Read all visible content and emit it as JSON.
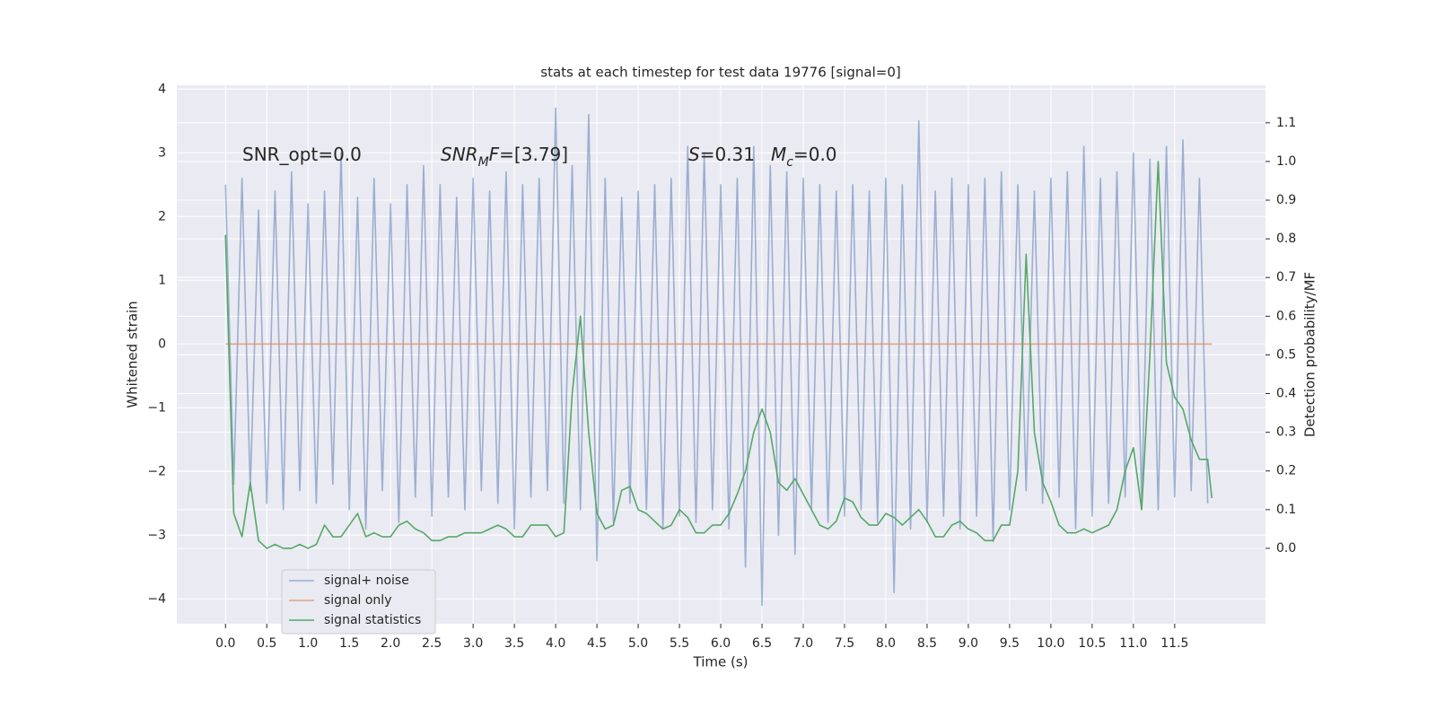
{
  "chart_data": {
    "type": "line",
    "title": "stats at each timestep for test data 19776 [signal=0]",
    "xlabel": "Time (s)",
    "ylabel": "Whitened strain",
    "y2label": "Detection probability/MF",
    "annotations": [
      [
        "SNR_opt=0.0"
      ],
      [
        "SNR",
        "M",
        "F",
        "=[3.79]"
      ],
      [
        "S",
        "=0.31"
      ],
      [
        "M",
        "c",
        "=0.0"
      ]
    ],
    "xlim": [
      -0.59,
      12.6
    ],
    "ylim": [
      -4.39,
      4.06
    ],
    "y2lim": [
      -0.195,
      1.197
    ],
    "xticks": [
      {
        "value": 0,
        "label": "0.0"
      },
      0.5,
      {
        "value": 1,
        "label": "1.0"
      },
      1.5,
      {
        "value": 2,
        "label": "2.0"
      },
      2.5,
      {
        "value": 3,
        "label": "3.0"
      },
      3.5,
      {
        "value": 4,
        "label": "4.0"
      },
      4.5,
      {
        "value": 5,
        "label": "5.0"
      },
      5.5,
      {
        "value": 6,
        "label": "6.0"
      },
      6.5,
      {
        "value": 7,
        "label": "7.0"
      },
      7.5,
      {
        "value": 8,
        "label": "8.0"
      },
      8.5,
      {
        "value": 9,
        "label": "9.0"
      },
      9.5,
      {
        "value": 10,
        "label": "10.0"
      },
      10.5,
      {
        "value": 11,
        "label": "11.0"
      },
      11.5
    ],
    "yticks": [
      {
        "value": -4,
        "label": "−4"
      },
      {
        "value": -3,
        "label": "−3"
      },
      {
        "value": -2,
        "label": "−2"
      },
      {
        "value": -1,
        "label": "−1"
      },
      0,
      1,
      2,
      3,
      4
    ],
    "y2ticks": [
      {
        "value": 0,
        "label": "0.0"
      },
      0.1,
      0.2,
      0.3,
      0.4,
      0.5,
      0.6,
      0.7,
      0.8,
      0.9,
      {
        "value": 1,
        "label": "1.0"
      },
      1.1
    ],
    "grid": true,
    "legend": "lower left",
    "series": [
      {
        "name": "signal+ noise",
        "color": "#4c72b0",
        "opacity": 0.5,
        "x": [
          0.0,
          0.1,
          0.2,
          0.3,
          0.4,
          0.5,
          0.6,
          0.7,
          0.8,
          0.9,
          1.0,
          1.1,
          1.2,
          1.3,
          1.4,
          1.5,
          1.6,
          1.7,
          1.8,
          1.9,
          2.0,
          2.1,
          2.2,
          2.3,
          2.4,
          2.5,
          2.6,
          2.7,
          2.8,
          2.9,
          3.0,
          3.1,
          3.2,
          3.3,
          3.4,
          3.5,
          3.6,
          3.7,
          3.8,
          3.9,
          4.0,
          4.1,
          4.2,
          4.3,
          4.4,
          4.5,
          4.6,
          4.7,
          4.8,
          4.9,
          5.0,
          5.1,
          5.2,
          5.3,
          5.4,
          5.5,
          5.6,
          5.7,
          5.8,
          5.9,
          6.0,
          6.1,
          6.2,
          6.3,
          6.4,
          6.5,
          6.6,
          6.7,
          6.8,
          6.9,
          7.0,
          7.1,
          7.2,
          7.3,
          7.4,
          7.5,
          7.6,
          7.7,
          7.8,
          7.9,
          8.0,
          8.1,
          8.2,
          8.3,
          8.4,
          8.5,
          8.6,
          8.7,
          8.8,
          8.9,
          9.0,
          9.1,
          9.2,
          9.3,
          9.4,
          9.5,
          9.6,
          9.7,
          9.8,
          9.9,
          10.0,
          10.1,
          10.2,
          10.3,
          10.4,
          10.5,
          10.6,
          10.7,
          10.8,
          10.9,
          11.0,
          11.1,
          11.2,
          11.3,
          11.4,
          11.5,
          11.6,
          11.7,
          11.8,
          11.9
        ],
        "values": [
          2.5,
          -2.2,
          2.6,
          -2.3,
          2.1,
          -2.5,
          2.4,
          -2.6,
          2.7,
          -2.3,
          2.2,
          -2.5,
          2.4,
          -2.2,
          3.0,
          -2.6,
          2.3,
          -2.9,
          2.6,
          -2.3,
          2.2,
          -2.8,
          2.5,
          -2.4,
          2.8,
          -2.7,
          2.5,
          -2.4,
          2.3,
          -2.6,
          2.6,
          -2.3,
          2.4,
          -2.5,
          2.7,
          -2.9,
          2.5,
          -2.4,
          2.6,
          -2.3,
          3.7,
          -2.5,
          2.8,
          -2.6,
          3.6,
          -3.4,
          2.6,
          -2.8,
          2.3,
          -2.5,
          2.4,
          -2.6,
          2.5,
          -2.9,
          2.6,
          -2.7,
          3.1,
          -2.8,
          3.0,
          -2.6,
          2.5,
          -2.9,
          2.6,
          -3.5,
          3.1,
          -4.1,
          2.8,
          -3.0,
          2.7,
          -3.3,
          2.6,
          -2.6,
          2.5,
          -2.8,
          2.4,
          -2.7,
          2.5,
          -2.6,
          2.4,
          -2.8,
          2.6,
          -3.9,
          2.5,
          -2.9,
          3.5,
          -2.8,
          2.4,
          -2.7,
          2.6,
          -2.9,
          2.5,
          -2.7,
          2.6,
          -3.1,
          2.7,
          -2.6,
          2.5,
          -2.3,
          2.4,
          -2.5,
          2.6,
          -2.4,
          2.7,
          -2.9,
          3.1,
          -2.7,
          2.6,
          -2.5,
          2.7,
          -2.4,
          3.0,
          -2.5,
          2.9,
          -2.6,
          3.1,
          -2.4,
          3.2,
          -2.3,
          2.6,
          -2.5
        ]
      },
      {
        "name": "signal only",
        "color": "#dd8452",
        "opacity": 0.7,
        "x": [
          0.0,
          11.95
        ],
        "values": [
          0,
          0
        ]
      },
      {
        "name": "signal statistics",
        "color": "#55a868",
        "opacity": 1,
        "axis": "y2",
        "x": [
          0.0,
          0.1,
          0.2,
          0.3,
          0.4,
          0.5,
          0.6,
          0.7,
          0.8,
          0.9,
          1.0,
          1.1,
          1.2,
          1.3,
          1.4,
          1.5,
          1.6,
          1.7,
          1.8,
          1.9,
          2.0,
          2.1,
          2.2,
          2.3,
          2.4,
          2.5,
          2.6,
          2.7,
          2.8,
          2.9,
          3.0,
          3.1,
          3.2,
          3.3,
          3.4,
          3.5,
          3.6,
          3.7,
          3.8,
          3.9,
          4.0,
          4.1,
          4.2,
          4.3,
          4.4,
          4.5,
          4.6,
          4.7,
          4.8,
          4.9,
          5.0,
          5.1,
          5.2,
          5.3,
          5.4,
          5.5,
          5.6,
          5.7,
          5.8,
          5.9,
          6.0,
          6.1,
          6.2,
          6.3,
          6.4,
          6.5,
          6.6,
          6.7,
          6.8,
          6.9,
          7.0,
          7.1,
          7.2,
          7.3,
          7.4,
          7.5,
          7.6,
          7.7,
          7.8,
          7.9,
          8.0,
          8.1,
          8.2,
          8.3,
          8.4,
          8.5,
          8.6,
          8.7,
          8.8,
          8.9,
          9.0,
          9.1,
          9.2,
          9.3,
          9.4,
          9.5,
          9.6,
          9.7,
          9.8,
          9.9,
          10.0,
          10.1,
          10.2,
          10.3,
          10.4,
          10.5,
          10.6,
          10.7,
          10.8,
          10.9,
          11.0,
          11.1,
          11.2,
          11.3,
          11.4,
          11.5,
          11.6,
          11.7,
          11.8,
          11.9,
          11.95
        ],
        "values": [
          0.81,
          0.09,
          0.03,
          0.17,
          0.02,
          0.0,
          0.01,
          0.0,
          0.0,
          0.01,
          0.0,
          0.01,
          0.06,
          0.03,
          0.03,
          0.06,
          0.09,
          0.03,
          0.04,
          0.03,
          0.03,
          0.06,
          0.07,
          0.05,
          0.04,
          0.02,
          0.02,
          0.03,
          0.03,
          0.04,
          0.04,
          0.04,
          0.05,
          0.06,
          0.05,
          0.03,
          0.03,
          0.06,
          0.06,
          0.06,
          0.03,
          0.04,
          0.4,
          0.6,
          0.3,
          0.09,
          0.05,
          0.06,
          0.15,
          0.16,
          0.1,
          0.09,
          0.07,
          0.05,
          0.06,
          0.1,
          0.08,
          0.04,
          0.04,
          0.06,
          0.06,
          0.09,
          0.14,
          0.2,
          0.3,
          0.36,
          0.3,
          0.17,
          0.15,
          0.18,
          0.14,
          0.1,
          0.06,
          0.05,
          0.07,
          0.13,
          0.12,
          0.08,
          0.06,
          0.06,
          0.09,
          0.08,
          0.06,
          0.08,
          0.1,
          0.07,
          0.03,
          0.03,
          0.06,
          0.07,
          0.05,
          0.04,
          0.02,
          0.02,
          0.06,
          0.06,
          0.2,
          0.76,
          0.3,
          0.17,
          0.12,
          0.06,
          0.04,
          0.04,
          0.05,
          0.04,
          0.05,
          0.06,
          0.1,
          0.2,
          0.26,
          0.1,
          0.5,
          1.0,
          0.48,
          0.39,
          0.36,
          0.28,
          0.23,
          0.23,
          0.13
        ]
      }
    ]
  }
}
